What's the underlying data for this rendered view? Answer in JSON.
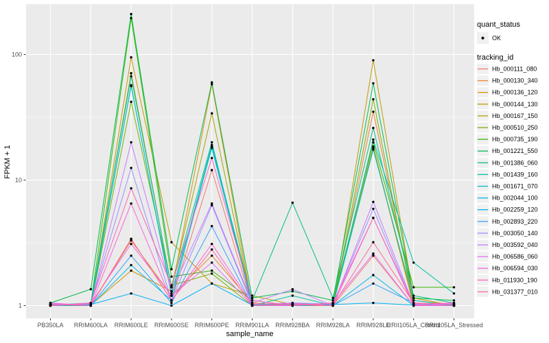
{
  "chart_data": {
    "type": "line",
    "title": "",
    "xlabel": "sample_name",
    "ylabel": "FPKM + 1",
    "y_scale": "log10",
    "y_ticks": [
      1,
      10,
      100
    ],
    "y_minor_ticks": [
      3.162,
      31.62
    ],
    "ylim": [
      1,
      252
    ],
    "grid": "on",
    "legend_position": "right",
    "panel_bg": "#EBEBEB",
    "grid_color": "#FFFFFF",
    "legend_key_bg": "#F0F0F0",
    "point_color": "#000000",
    "categories": [
      "PB350LA",
      "RRIM600LA",
      "RRIM600LE",
      "RRIM600SE",
      "RRIM600PE",
      "RRIM901LA",
      "RRIM928BA",
      "RRIM928LA",
      "RRIM928LE",
      "RRII105LA_Control",
      "RRII105LA_Stressed"
    ],
    "legend": {
      "quant_status_title": "quant_status",
      "quant_status_items": [
        {
          "label": "OK",
          "shape": "point"
        }
      ],
      "tracking_id_title": "tracking_id"
    },
    "series": [
      {
        "name": "Hb_000111_080",
        "color": "#F8766D",
        "values": [
          1.0,
          1.0,
          3.4,
          1.1,
          12.0,
          1.0,
          1.0,
          1.0,
          2.5,
          1.0,
          1.0
        ]
      },
      {
        "name": "Hb_000130_340",
        "color": "#EA8331",
        "values": [
          1.01,
          1.0,
          3.3,
          1.2,
          2.5,
          1.05,
          1.01,
          1.0,
          35.0,
          1.1,
          1.01
        ]
      },
      {
        "name": "Hb_000136_120",
        "color": "#D89000",
        "values": [
          1.0,
          1.01,
          1.9,
          1.3,
          58.0,
          1.0,
          1.0,
          1.01,
          18.0,
          1.0,
          1.0
        ]
      },
      {
        "name": "Hb_000144_130",
        "color": "#C09B00",
        "values": [
          1.02,
          1.0,
          95.0,
          3.2,
          1.5,
          1.2,
          1.02,
          1.0,
          90.0,
          1.15,
          1.0
        ]
      },
      {
        "name": "Hb_000167_150",
        "color": "#A3A500",
        "values": [
          1.0,
          1.02,
          71.0,
          1.4,
          34.0,
          1.02,
          1.0,
          1.02,
          18.5,
          1.02,
          1.02
        ]
      },
      {
        "name": "Hb_000510_250",
        "color": "#7CAE00",
        "values": [
          1.03,
          1.0,
          42.0,
          1.45,
          1.8,
          1.0,
          1.05,
          1.0,
          44.0,
          1.0,
          1.0
        ]
      },
      {
        "name": "Hb_000735_190",
        "color": "#39B600",
        "values": [
          1.0,
          1.03,
          195.0,
          1.7,
          1.9,
          1.1,
          1.0,
          1.05,
          20.0,
          1.4,
          1.4
        ]
      },
      {
        "name": "Hb_001221_550",
        "color": "#00BB4E",
        "values": [
          1.05,
          1.35,
          210.0,
          1.95,
          60.0,
          1.15,
          1.3,
          1.1,
          59.0,
          1.15,
          1.1
        ]
      },
      {
        "name": "Hb_001386_060",
        "color": "#00BF7D",
        "values": [
          1.0,
          1.0,
          57.0,
          1.2,
          19.0,
          1.1,
          6.6,
          1.15,
          26.0,
          1.2,
          1.05
        ]
      },
      {
        "name": "Hb_001439_160",
        "color": "#00C1A3",
        "values": [
          1.01,
          1.05,
          67.0,
          1.4,
          20.0,
          1.0,
          1.2,
          1.0,
          21.0,
          2.2,
          1.25
        ]
      },
      {
        "name": "Hb_001671_070",
        "color": "#00BFC4",
        "values": [
          1.0,
          1.01,
          56.0,
          1.25,
          18.0,
          1.03,
          1.0,
          1.01,
          17.5,
          1.1,
          1.0
        ]
      },
      {
        "name": "Hb_002044_100",
        "color": "#00BAE0",
        "values": [
          1.02,
          1.0,
          2.1,
          1.1,
          18.5,
          1.0,
          1.02,
          1.0,
          1.75,
          1.0,
          1.02
        ]
      },
      {
        "name": "Hb_002259_120",
        "color": "#00B0F6",
        "values": [
          1.0,
          1.02,
          1.25,
          1.0,
          1.5,
          1.01,
          1.0,
          1.02,
          1.05,
          1.01,
          1.0
        ]
      },
      {
        "name": "Hb_002893_220",
        "color": "#35A2FF",
        "values": [
          1.03,
          1.0,
          2.5,
          1.05,
          4.3,
          1.0,
          1.03,
          1.0,
          1.5,
          1.05,
          1.0
        ]
      },
      {
        "name": "Hb_003050_140",
        "color": "#9590FF",
        "values": [
          1.0,
          1.03,
          12.5,
          1.1,
          6.3,
          1.02,
          1.05,
          1.03,
          5.9,
          1.0,
          1.03
        ]
      },
      {
        "name": "Hb_003592_040",
        "color": "#C77CFF",
        "values": [
          1.04,
          1.0,
          20.0,
          1.3,
          6.5,
          1.05,
          1.35,
          1.0,
          6.7,
          1.02,
          1.0
        ]
      },
      {
        "name": "Hb_006586_060",
        "color": "#E76BF3",
        "values": [
          1.0,
          1.04,
          3.1,
          1.2,
          2.2,
          1.0,
          1.0,
          1.04,
          2.6,
          1.0,
          1.04
        ]
      },
      {
        "name": "Hb_006594_030",
        "color": "#FA62DB",
        "values": [
          1.05,
          1.0,
          6.5,
          1.1,
          3.1,
          1.03,
          1.04,
          1.0,
          5.0,
          1.03,
          1.05
        ]
      },
      {
        "name": "Hb_011930_190",
        "color": "#FF62BC",
        "values": [
          1.0,
          1.05,
          8.6,
          1.45,
          15.0,
          1.1,
          1.0,
          1.05,
          5.0,
          1.0,
          1.0
        ]
      },
      {
        "name": "Hb_031377_010",
        "color": "#FF6A98",
        "values": [
          1.02,
          1.0,
          3.4,
          1.1,
          2.8,
          1.0,
          1.02,
          1.0,
          3.2,
          1.05,
          1.02
        ]
      }
    ]
  }
}
